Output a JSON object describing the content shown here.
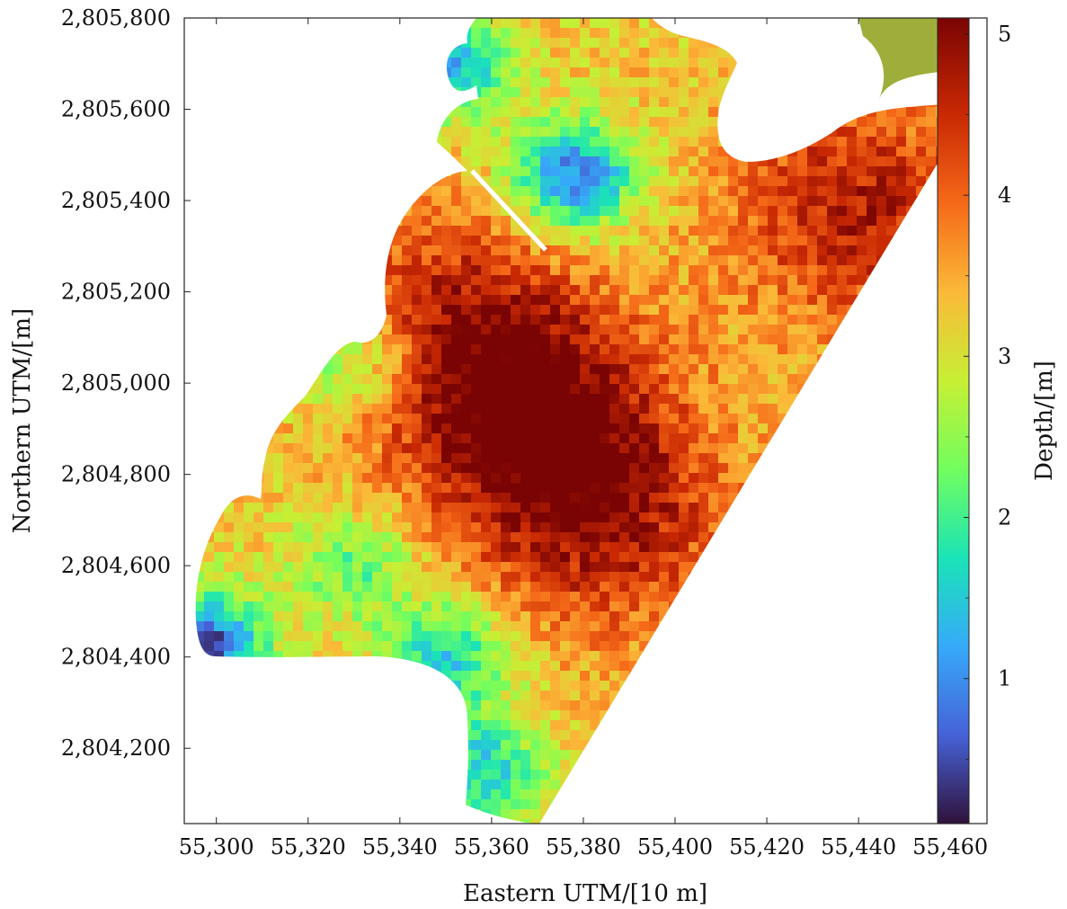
{
  "chart_data": {
    "type": "heatmap",
    "title": "",
    "xlabel": "Eastern UTM/[10 m]",
    "ylabel": "Northern UTM/[m]",
    "colorbar_label": "Depth/[m]",
    "xlim": [
      55293,
      55468
    ],
    "ylim": [
      2804035,
      2805800
    ],
    "x_ticks": [
      55300,
      55320,
      55340,
      55360,
      55380,
      55400,
      55420,
      55440,
      55460
    ],
    "x_tick_labels": [
      "55,300",
      "55,320",
      "55,340",
      "55,360",
      "55,380",
      "55,400",
      "55,420",
      "55,440",
      "55,460"
    ],
    "y_ticks": [
      2804200,
      2804400,
      2804600,
      2804800,
      2805000,
      2805200,
      2805400,
      2805600,
      2805800
    ],
    "y_tick_labels": [
      "2,804,200",
      "2,804,400",
      "2,804,600",
      "2,804,800",
      "2,805,000",
      "2,805,200",
      "2,805,400",
      "2,805,600",
      "2,805,800"
    ],
    "colorbar_range": [
      0.1,
      5.1
    ],
    "colorbar_ticks": [
      1,
      2,
      3,
      4,
      5
    ],
    "colorbar_tick_labels": [
      "1",
      "2",
      "3",
      "4",
      "5"
    ],
    "colormap": [
      "#30123b",
      "#4662d7",
      "#36aaf9",
      "#1ae4b6",
      "#72fe5e",
      "#c7ef34",
      "#fbb938",
      "#f56918",
      "#c92903",
      "#7a0403"
    ],
    "depth_field": {
      "description_of_values": "estimated bathymetric depth (m) sampled on the plotted domain",
      "deep_centers": [
        {
          "x": 55368,
          "y": 2804930,
          "depth": 5.0
        },
        {
          "x": 55385,
          "y": 2804700,
          "depth": 4.6
        },
        {
          "x": 55440,
          "y": 2805380,
          "depth": 4.7
        },
        {
          "x": 55350,
          "y": 2805150,
          "depth": 4.4
        }
      ],
      "shallow_centers": [
        {
          "x": 55378,
          "y": 2805450,
          "depth": 0.8
        },
        {
          "x": 55350,
          "y": 2805700,
          "depth": 1.2
        },
        {
          "x": 55296,
          "y": 2804420,
          "depth": 0.3
        },
        {
          "x": 55350,
          "y": 2804400,
          "depth": 1.5
        },
        {
          "x": 55358,
          "y": 2804150,
          "depth": 1.6
        },
        {
          "x": 55330,
          "y": 2804600,
          "depth": 2.2
        },
        {
          "x": 55330,
          "y": 2805050,
          "depth": 2.0
        },
        {
          "x": 55450,
          "y": 2805750,
          "depth": 3.0
        }
      ]
    }
  }
}
